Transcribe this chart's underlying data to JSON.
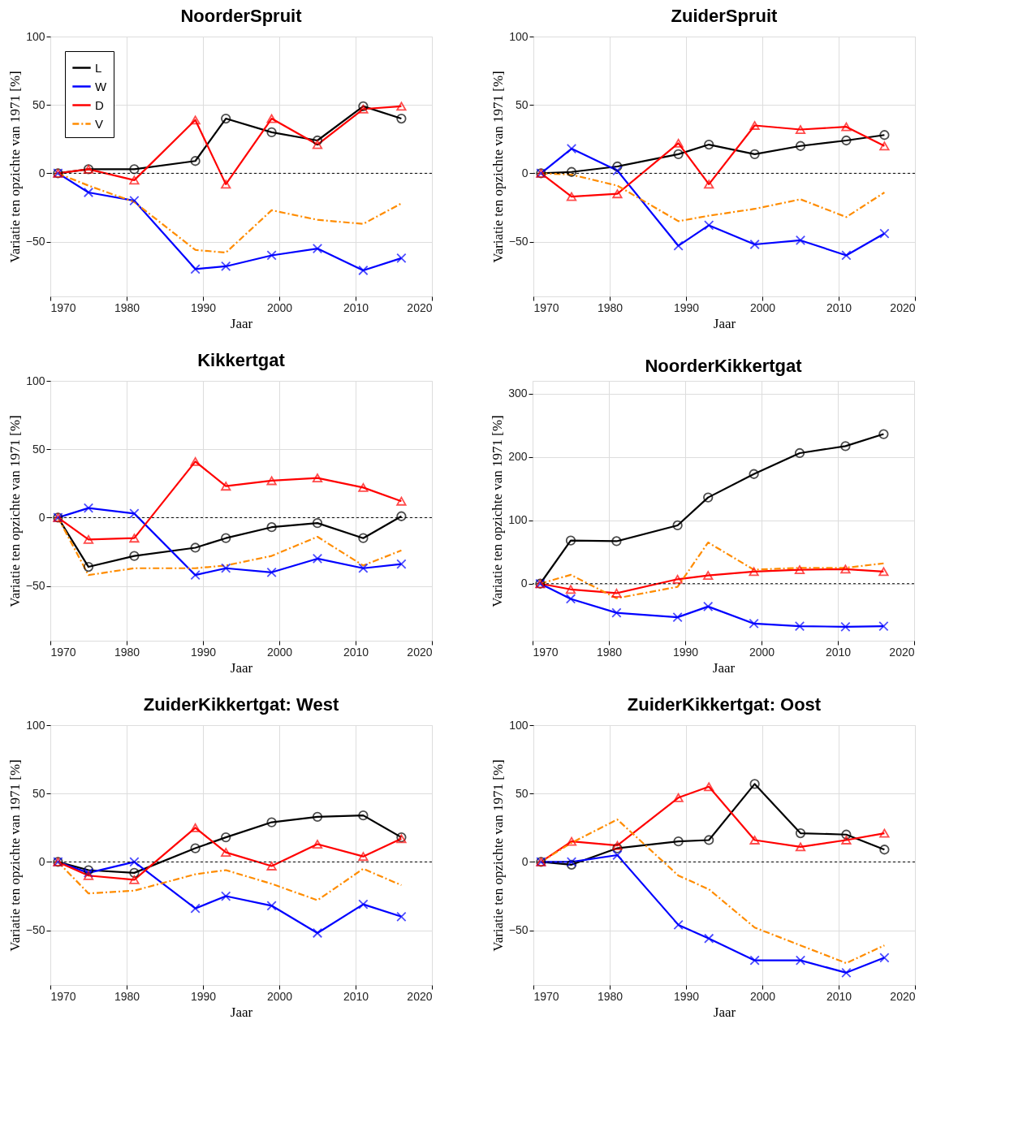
{
  "chart_data": [
    {
      "type": "line",
      "title": "NoorderSpruit",
      "xlabel": "Jaar",
      "ylabel": "Variatie ten opzichte van 1971 [%]",
      "x": [
        1971,
        1975,
        1981,
        1989,
        1993,
        1999,
        2005,
        2011,
        2016
      ],
      "xlim": [
        1970,
        2020
      ],
      "xticks": [
        1970,
        1980,
        1990,
        2000,
        2010,
        2020
      ],
      "ylim": [
        -90,
        100
      ],
      "yticks": [
        -50,
        0,
        50,
        100
      ],
      "grid": true,
      "legend": "top left",
      "ref_lines": [
        {
          "axis": "y",
          "value": 0,
          "color": "#000000",
          "line_style": "dashed"
        }
      ],
      "series": [
        {
          "name": "L",
          "color": "#000000",
          "marker": "circle",
          "line_style": "solid",
          "values": [
            0,
            3,
            3,
            9,
            40,
            30,
            24,
            49,
            40
          ]
        },
        {
          "name": "W",
          "color": "#0000ff",
          "marker": "cross",
          "line_style": "solid",
          "values": [
            0,
            -14,
            -20,
            -70,
            -68,
            -60,
            -55,
            -71,
            -62
          ]
        },
        {
          "name": "D",
          "color": "#ff0000",
          "marker": "triangle",
          "line_style": "solid",
          "values": [
            0,
            3,
            -5,
            39,
            -8,
            40,
            21,
            47,
            49
          ]
        },
        {
          "name": "V",
          "color": "#ff8c00",
          "marker": "none",
          "line_style": "dashed",
          "values": [
            0,
            -9,
            -21,
            -56,
            -58,
            -27,
            -34,
            -37,
            -22
          ]
        }
      ]
    },
    {
      "type": "line",
      "title": "ZuiderSpruit",
      "xlabel": "Jaar",
      "ylabel": "Variatie ten opzichte van 1971 [%]",
      "x": [
        1971,
        1975,
        1981,
        1989,
        1993,
        1999,
        2005,
        2011,
        2016
      ],
      "xlim": [
        1970,
        2020
      ],
      "xticks": [
        1970,
        1980,
        1990,
        2000,
        2010,
        2020
      ],
      "ylim": [
        -90,
        100
      ],
      "yticks": [
        -50,
        0,
        50,
        100
      ],
      "grid": true,
      "ref_lines": [
        {
          "axis": "y",
          "value": 0,
          "color": "#000000",
          "line_style": "dashed"
        }
      ],
      "series": [
        {
          "color": "#000000",
          "marker": "circle",
          "line_style": "solid",
          "values": [
            0,
            1,
            5,
            14,
            21,
            14,
            20,
            24,
            28
          ]
        },
        {
          "color": "#0000ff",
          "marker": "cross",
          "line_style": "solid",
          "values": [
            0,
            18,
            2,
            -53,
            -38,
            -52,
            -49,
            -60,
            -44
          ]
        },
        {
          "color": "#ff0000",
          "marker": "triangle",
          "line_style": "solid",
          "values": [
            0,
            -17,
            -15,
            22,
            -8,
            35,
            32,
            34,
            20
          ]
        },
        {
          "color": "#ff8c00",
          "marker": "none",
          "line_style": "dashed",
          "values": [
            0,
            -1,
            -9,
            -35,
            -31,
            -26,
            -19,
            -32,
            -14
          ]
        }
      ]
    },
    {
      "type": "line",
      "title": "Kikkertgat",
      "xlabel": "Jaar",
      "ylabel": "Variatie ten opzichte van 1971 [%]",
      "x": [
        1971,
        1975,
        1981,
        1989,
        1993,
        1999,
        2005,
        2011,
        2016
      ],
      "xlim": [
        1970,
        2020
      ],
      "xticks": [
        1970,
        1980,
        1990,
        2000,
        2010,
        2020
      ],
      "ylim": [
        -90,
        100
      ],
      "yticks": [
        -50,
        0,
        50,
        100
      ],
      "grid": true,
      "ref_lines": [
        {
          "axis": "y",
          "value": 0,
          "color": "#000000",
          "line_style": "dashed"
        }
      ],
      "series": [
        {
          "color": "#000000",
          "marker": "circle",
          "line_style": "solid",
          "values": [
            0,
            -36,
            -28,
            -22,
            -15,
            -7,
            -4,
            -15,
            1
          ]
        },
        {
          "color": "#0000ff",
          "marker": "cross",
          "line_style": "solid",
          "values": [
            0,
            7,
            3,
            -42,
            -37,
            -40,
            -30,
            -37,
            -34
          ]
        },
        {
          "color": "#ff0000",
          "marker": "triangle",
          "line_style": "solid",
          "values": [
            0,
            -16,
            -15,
            41,
            23,
            27,
            29,
            22,
            12
          ]
        },
        {
          "color": "#ff8c00",
          "marker": "none",
          "line_style": "dashed",
          "values": [
            0,
            -42,
            -37,
            -37,
            -35,
            -28,
            -14,
            -35,
            -24
          ]
        }
      ]
    },
    {
      "type": "line",
      "title": "NoorderKikkertgat",
      "xlabel": "Jaar",
      "ylabel": "Variatie ten opzichte van 1971 [%]",
      "x": [
        1971,
        1975,
        1981,
        1989,
        1993,
        1999,
        2005,
        2011,
        2016
      ],
      "xlim": [
        1970,
        2020
      ],
      "xticks": [
        1970,
        1980,
        1990,
        2000,
        2010,
        2020
      ],
      "ylim": [
        -90,
        320
      ],
      "yticks": [
        0,
        100,
        200,
        300
      ],
      "grid": true,
      "ref_lines": [
        {
          "axis": "y",
          "value": 0,
          "color": "#000000",
          "line_style": "dashed"
        }
      ],
      "series": [
        {
          "color": "#000000",
          "marker": "circle",
          "line_style": "solid",
          "values": [
            0,
            68,
            67,
            92,
            136,
            173,
            206,
            217,
            236
          ]
        },
        {
          "color": "#0000ff",
          "marker": "cross",
          "line_style": "solid",
          "values": [
            0,
            -24,
            -46,
            -53,
            -36,
            -63,
            -67,
            -68,
            -67
          ]
        },
        {
          "color": "#ff0000",
          "marker": "triangle",
          "line_style": "solid",
          "values": [
            0,
            -9,
            -15,
            7,
            13,
            19,
            22,
            23,
            19
          ]
        },
        {
          "color": "#ff8c00",
          "marker": "none",
          "line_style": "dashed",
          "values": [
            0,
            14,
            -23,
            -5,
            65,
            22,
            25,
            25,
            32
          ]
        }
      ]
    },
    {
      "type": "line",
      "title": "ZuiderKikkertgat: West",
      "xlabel": "Jaar",
      "ylabel": "Variatie ten opzichte van 1971 [%]",
      "x": [
        1971,
        1975,
        1981,
        1989,
        1993,
        1999,
        2005,
        2011,
        2016
      ],
      "xlim": [
        1970,
        2020
      ],
      "xticks": [
        1970,
        1980,
        1990,
        2000,
        2010,
        2020
      ],
      "ylim": [
        -90,
        100
      ],
      "yticks": [
        -50,
        0,
        50,
        100
      ],
      "grid": true,
      "ref_lines": [
        {
          "axis": "y",
          "value": 0,
          "color": "#000000",
          "line_style": "dashed"
        }
      ],
      "series": [
        {
          "color": "#000000",
          "marker": "circle",
          "line_style": "solid",
          "values": [
            0,
            -6,
            -8,
            10,
            18,
            29,
            33,
            34,
            18
          ]
        },
        {
          "color": "#0000ff",
          "marker": "cross",
          "line_style": "solid",
          "values": [
            0,
            -8,
            0,
            -34,
            -25,
            -32,
            -52,
            -31,
            -40
          ]
        },
        {
          "color": "#ff0000",
          "marker": "triangle",
          "line_style": "solid",
          "values": [
            0,
            -10,
            -13,
            25,
            7,
            -3,
            13,
            4,
            17
          ]
        },
        {
          "color": "#ff8c00",
          "marker": "none",
          "line_style": "dashed",
          "values": [
            0,
            -23,
            -21,
            -9,
            -6,
            -16,
            -28,
            -5,
            -17
          ]
        }
      ]
    },
    {
      "type": "line",
      "title": "ZuiderKikkertgat: Oost",
      "xlabel": "Jaar",
      "ylabel": "Variatie ten opzichte van 1971 [%]",
      "x": [
        1971,
        1975,
        1981,
        1989,
        1993,
        1999,
        2005,
        2011,
        2016
      ],
      "xlim": [
        1970,
        2020
      ],
      "xticks": [
        1970,
        1980,
        1990,
        2000,
        2010,
        2020
      ],
      "ylim": [
        -90,
        100
      ],
      "yticks": [
        -50,
        0,
        50,
        100
      ],
      "grid": true,
      "ref_lines": [
        {
          "axis": "y",
          "value": 0,
          "color": "#000000",
          "line_style": "dashed"
        }
      ],
      "series": [
        {
          "color": "#000000",
          "marker": "circle",
          "line_style": "solid",
          "values": [
            0,
            -2,
            10,
            15,
            16,
            57,
            21,
            20,
            9
          ]
        },
        {
          "color": "#0000ff",
          "marker": "cross",
          "line_style": "solid",
          "values": [
            0,
            0,
            5,
            -46,
            -56,
            -72,
            -72,
            -81,
            -70
          ]
        },
        {
          "color": "#ff0000",
          "marker": "triangle",
          "line_style": "solid",
          "values": [
            0,
            15,
            12,
            47,
            55,
            16,
            11,
            16,
            21
          ]
        },
        {
          "color": "#ff8c00",
          "marker": "none",
          "line_style": "dashed",
          "values": [
            0,
            14,
            31,
            -10,
            -20,
            -48,
            -61,
            -74,
            -61
          ]
        }
      ]
    }
  ]
}
